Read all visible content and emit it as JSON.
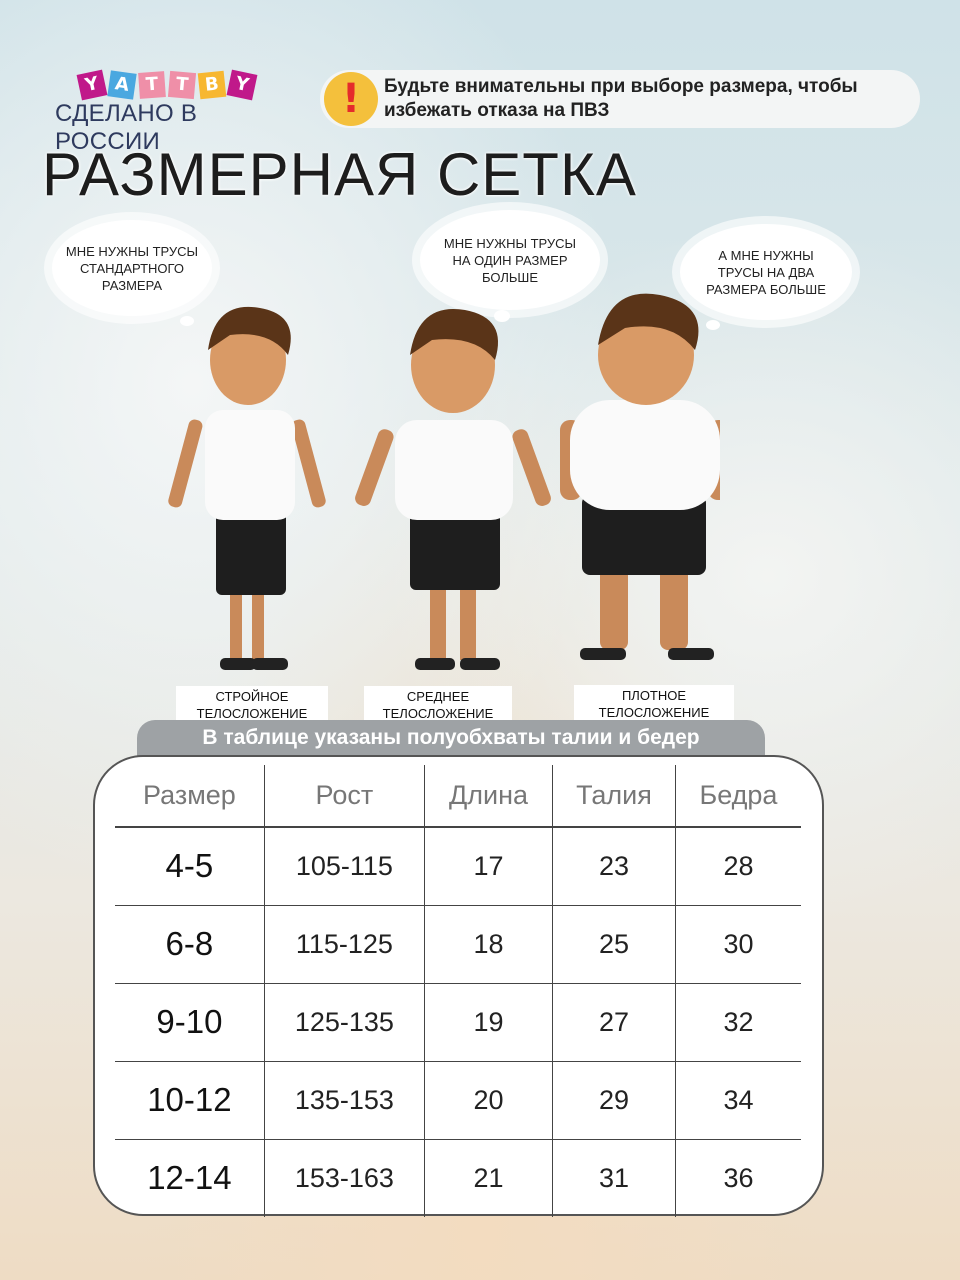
{
  "logo": {
    "letters": [
      "Y",
      "A",
      "T",
      "T",
      "B",
      "Y"
    ],
    "letter_colors": [
      "#c0198a",
      "#4aa8e0",
      "#ef8fa8",
      "#ef8fa8",
      "#f7b731",
      "#c0198a"
    ],
    "tagline": "СДЕЛАНО В РОССИИ"
  },
  "warning": {
    "icon": "exclamation-icon",
    "text": "Будьте внимательны при выборе размера, чтобы избежать отказа на ПВЗ"
  },
  "title": "РАЗМЕРНАЯ СЕТКА",
  "kids": [
    {
      "bubble": "МНЕ НУЖНЫ ТРУСЫ СТАНДАРТНОГО РАЗМЕРА",
      "label": "СТРОЙНОЕ ТЕЛОСЛОЖЕНИЕ"
    },
    {
      "bubble": "МНЕ НУЖНЫ ТРУСЫ НА ОДИН РАЗМЕР БОЛЬШЕ",
      "label": "СРЕДНЕЕ ТЕЛОСЛОЖЕНИЕ"
    },
    {
      "bubble": "А МНЕ НУЖНЫ ТРУСЫ НА ДВА РАЗМЕРА БОЛЬШЕ",
      "label": "ПЛОТНОЕ ТЕЛОСЛОЖЕНИЕ"
    }
  ],
  "banner": "В таблице указаны полуобхваты талии и бедер",
  "table": {
    "headers": [
      "Размер",
      "Рост",
      "Длина",
      "Талия",
      "Бедра"
    ],
    "rows": [
      [
        "4-5",
        "105-115",
        "17",
        "23",
        "28"
      ],
      [
        "6-8",
        "115-125",
        "18",
        "25",
        "30"
      ],
      [
        "9-10",
        "125-135",
        "19",
        "27",
        "32"
      ],
      [
        "10-12",
        "135-153",
        "20",
        "29",
        "34"
      ],
      [
        "12-14",
        "153-163",
        "21",
        "31",
        "36"
      ]
    ]
  }
}
